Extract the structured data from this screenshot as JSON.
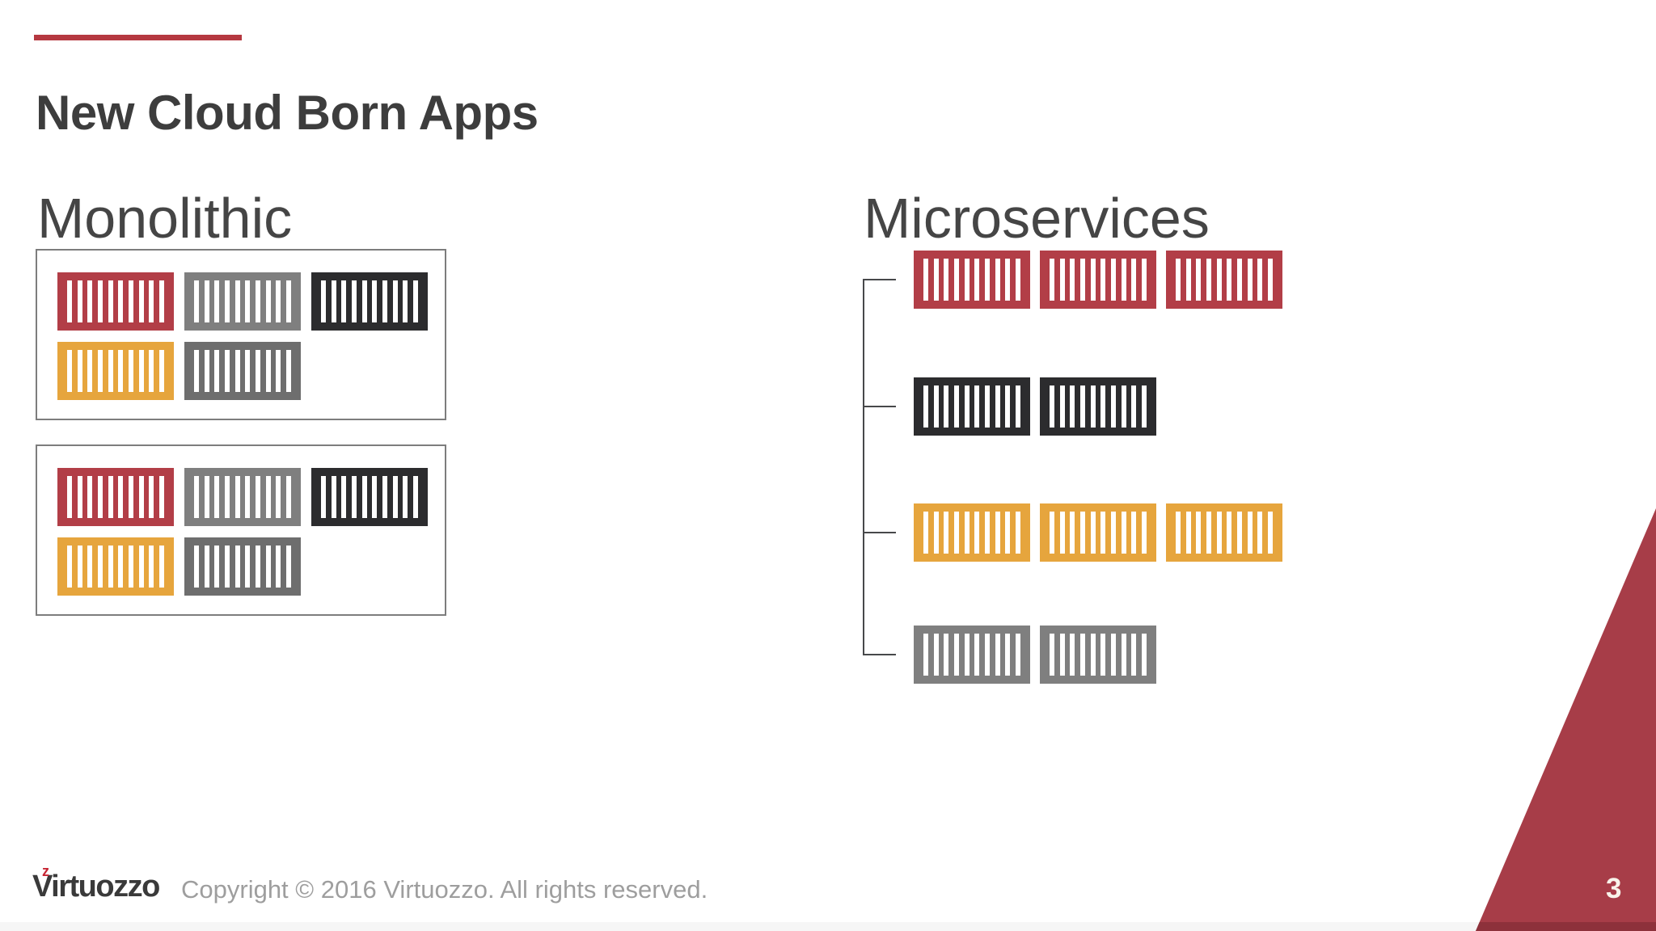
{
  "slide": {
    "title": "New Cloud Born Apps",
    "page_number": "3"
  },
  "sections": {
    "monolithic": {
      "heading": "Monolithic",
      "boxes": [
        {
          "rows": [
            [
              "red",
              "gray",
              "dark"
            ],
            [
              "orange",
              "gray_dark"
            ]
          ]
        },
        {
          "rows": [
            [
              "red",
              "gray",
              "dark"
            ],
            [
              "orange",
              "gray_dark"
            ]
          ]
        }
      ]
    },
    "microservices": {
      "heading": "Microservices",
      "groups": [
        {
          "color": "red",
          "count": 3
        },
        {
          "color": "dark",
          "count": 2
        },
        {
          "color": "orange",
          "count": 3
        },
        {
          "color": "gray",
          "count": 2
        }
      ]
    }
  },
  "footer": {
    "logo_text": "Virtuozzo",
    "logo_mark": "z",
    "copyright": "Copyright © 2016 Virtuozzo. All rights reserved."
  },
  "colors": {
    "accent_bar": "#b53840",
    "container_red": "#b23e47",
    "container_gray": "#7f7f7f",
    "container_gray_dark": "#6e6e6e",
    "container_dark": "#2c2c2e",
    "container_orange": "#e6a53d",
    "triangle_red": "#a73d48",
    "triangle_edge": "#8d313b",
    "connector_line": "#47484a"
  }
}
